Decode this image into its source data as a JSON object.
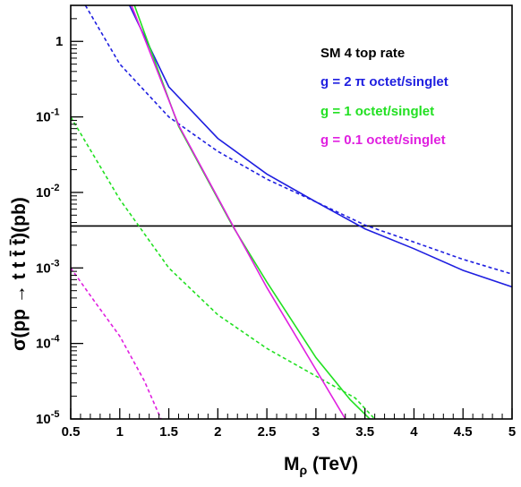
{
  "chart_data": {
    "type": "line",
    "title": "",
    "xlabel": "M_ρ (TeV)",
    "ylabel": "σ(pp → t t t̄ t̄)(pb)",
    "xlim": [
      0.5,
      5
    ],
    "ylim": [
      1e-05,
      3
    ],
    "yscale": "log",
    "grid": false,
    "legend_position": "top-right",
    "x_ticks": [
      {
        "v": 0.5,
        "label": "0.5"
      },
      {
        "v": 1,
        "label": "1"
      },
      {
        "v": 1.5,
        "label": "1.5"
      },
      {
        "v": 2,
        "label": "2"
      },
      {
        "v": 2.5,
        "label": "2.5"
      },
      {
        "v": 3,
        "label": "3"
      },
      {
        "v": 3.5,
        "label": "3.5"
      },
      {
        "v": 4,
        "label": "4"
      },
      {
        "v": 4.5,
        "label": "4.5"
      },
      {
        "v": 5,
        "label": "5"
      }
    ],
    "y_ticks": [
      {
        "v": 1e-05,
        "base": "10",
        "exp": "-5"
      },
      {
        "v": 0.0001,
        "base": "10",
        "exp": "-4"
      },
      {
        "v": 0.001,
        "base": "10",
        "exp": "-3"
      },
      {
        "v": 0.01,
        "base": "10",
        "exp": "-2"
      },
      {
        "v": 0.1,
        "base": "10",
        "exp": "-1"
      },
      {
        "v": 1,
        "base": "1",
        "exp": ""
      }
    ],
    "legend": [
      {
        "label": "SM 4 top rate",
        "color": "#000000"
      },
      {
        "label": "g = 2 π octet/singlet",
        "color": "#1f1fe0"
      },
      {
        "label": "g = 1 octet/singlet",
        "color": "#22e022"
      },
      {
        "label": "g = 0.1 octet/singlet",
        "color": "#e020e0"
      }
    ],
    "series": [
      {
        "color": "#000000",
        "dash": false,
        "points": [
          [
            0.5,
            0.0036
          ],
          [
            5,
            0.0036
          ]
        ]
      },
      {
        "color": "#1f1fe0",
        "dash": false,
        "points": [
          [
            1.1,
            3
          ],
          [
            1.5,
            0.25
          ],
          [
            2.0,
            0.052
          ],
          [
            2.5,
            0.0175
          ],
          [
            3.0,
            0.0075
          ],
          [
            3.5,
            0.0033
          ],
          [
            4.0,
            0.0018
          ],
          [
            4.5,
            0.00093
          ],
          [
            5.0,
            0.00056
          ]
        ]
      },
      {
        "color": "#1f1fe0",
        "dash": true,
        "points": [
          [
            0.65,
            3
          ],
          [
            1.0,
            0.5
          ],
          [
            1.5,
            0.1
          ],
          [
            2.0,
            0.035
          ],
          [
            2.5,
            0.015
          ],
          [
            3.0,
            0.0075
          ],
          [
            3.5,
            0.0037
          ],
          [
            4.0,
            0.0022
          ],
          [
            4.5,
            0.0013
          ],
          [
            5.0,
            0.00083
          ]
        ]
      },
      {
        "color": "#22e022",
        "dash": false,
        "points": [
          [
            1.15,
            3
          ],
          [
            1.6,
            0.075
          ],
          [
            2.15,
            0.0036
          ],
          [
            2.5,
            0.00065
          ],
          [
            3.0,
            6.5e-05
          ],
          [
            3.35,
            1.8e-05
          ],
          [
            3.55,
            1e-05
          ]
        ]
      },
      {
        "color": "#22e022",
        "dash": true,
        "points": [
          [
            0.5,
            0.1
          ],
          [
            1.0,
            0.0081
          ],
          [
            1.5,
            0.001
          ],
          [
            2.0,
            0.00024
          ],
          [
            2.5,
            8.6e-05
          ],
          [
            3.0,
            3.7e-05
          ],
          [
            3.4,
            1.9e-05
          ],
          [
            3.6,
            1e-05
          ]
        ]
      },
      {
        "color": "#e020e0",
        "dash": false,
        "points": [
          [
            1.12,
            3
          ],
          [
            1.6,
            0.078
          ],
          [
            2.16,
            0.0035
          ],
          [
            2.5,
            0.00055
          ],
          [
            3.0,
            4.5e-05
          ],
          [
            3.3,
            1e-05
          ]
        ]
      },
      {
        "color": "#e020e0",
        "dash": true,
        "points": [
          [
            0.5,
            0.001
          ],
          [
            0.75,
            0.00035
          ],
          [
            1.0,
            0.000125
          ],
          [
            1.25,
            3.2e-05
          ],
          [
            1.42,
            1e-05
          ]
        ]
      }
    ]
  }
}
